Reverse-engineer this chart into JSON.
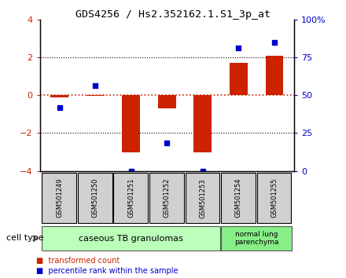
{
  "title": "GDS4256 / Hs2.352162.1.S1_3p_at",
  "samples": [
    "GSM501249",
    "GSM501250",
    "GSM501251",
    "GSM501252",
    "GSM501253",
    "GSM501254",
    "GSM501255"
  ],
  "red_bars": [
    -0.1,
    -0.05,
    -3.0,
    -0.7,
    -3.0,
    1.7,
    2.1
  ],
  "blue_dots_left_axis": [
    -0.65,
    0.5,
    -4.0,
    -2.5,
    -4.0,
    2.5,
    2.8
  ],
  "ylim": [
    -4,
    4
  ],
  "yticks_left": [
    -4,
    -2,
    0,
    2,
    4
  ],
  "yticks_right": [
    0,
    25,
    50,
    75,
    100
  ],
  "yticks_right_labels": [
    "0",
    "25",
    "50",
    "75",
    "100%"
  ],
  "red_color": "#cc2200",
  "blue_color": "#0000cc",
  "groups": [
    {
      "label": "caseous TB granulomas",
      "indices": [
        0,
        1,
        2,
        3,
        4
      ],
      "color": "#bbffbb"
    },
    {
      "label": "normal lung\nparenchyma",
      "indices": [
        5,
        6
      ],
      "color": "#88ee88"
    }
  ],
  "legend_items": [
    {
      "color": "#cc2200",
      "label": "transformed count"
    },
    {
      "color": "#0000cc",
      "label": "percentile rank within the sample"
    }
  ],
  "cell_type_label": "cell type",
  "bar_width": 0.5,
  "sample_box_color": "#d0d0d0",
  "background_color": "#ffffff"
}
